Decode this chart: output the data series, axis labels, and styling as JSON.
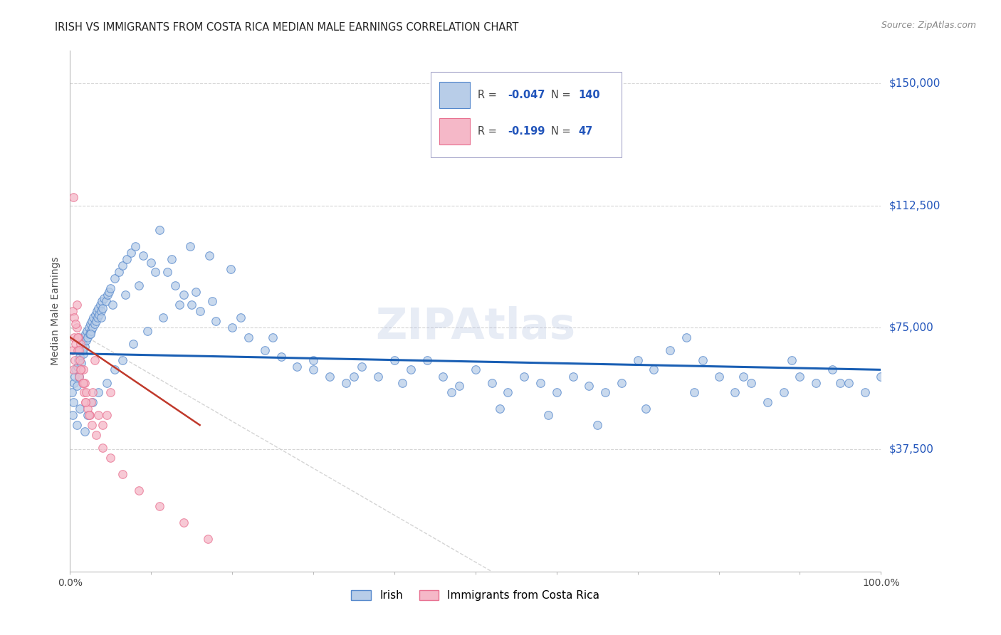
{
  "title": "IRISH VS IMMIGRANTS FROM COSTA RICA MEDIAN MALE EARNINGS CORRELATION CHART",
  "source": "Source: ZipAtlas.com",
  "ylabel": "Median Male Earnings",
  "ymin": 0,
  "ymax": 160000,
  "xmin": 0.0,
  "xmax": 1.0,
  "watermark": "ZIPAtlas",
  "legend_irish_r": "-0.047",
  "legend_irish_n": "140",
  "legend_cr_r": "-0.199",
  "legend_cr_n": "47",
  "blue_scatter_color": "#b8cde8",
  "blue_edge_color": "#5588cc",
  "pink_scatter_color": "#f5b8c8",
  "pink_edge_color": "#e87090",
  "trend_blue_color": "#1a5fb4",
  "trend_pink_color": "#c0392b",
  "diag_color": "#d0d0d0",
  "grid_color": "#d5d5d5",
  "right_label_color": "#2255bb",
  "ytick_positions": [
    37500,
    75000,
    112500,
    150000
  ],
  "ytick_labels": [
    "$37,500",
    "$75,000",
    "$112,500",
    "$150,000"
  ],
  "irish_x": [
    0.002,
    0.003,
    0.004,
    0.005,
    0.006,
    0.007,
    0.008,
    0.009,
    0.01,
    0.011,
    0.012,
    0.013,
    0.014,
    0.015,
    0.016,
    0.017,
    0.018,
    0.019,
    0.02,
    0.021,
    0.022,
    0.023,
    0.024,
    0.025,
    0.026,
    0.027,
    0.028,
    0.029,
    0.03,
    0.031,
    0.032,
    0.033,
    0.034,
    0.035,
    0.036,
    0.037,
    0.038,
    0.039,
    0.04,
    0.042,
    0.044,
    0.046,
    0.048,
    0.05,
    0.055,
    0.06,
    0.065,
    0.07,
    0.075,
    0.08,
    0.09,
    0.1,
    0.11,
    0.12,
    0.13,
    0.14,
    0.15,
    0.16,
    0.18,
    0.2,
    0.22,
    0.24,
    0.26,
    0.28,
    0.3,
    0.32,
    0.34,
    0.36,
    0.38,
    0.4,
    0.42,
    0.44,
    0.46,
    0.48,
    0.5,
    0.52,
    0.54,
    0.56,
    0.58,
    0.6,
    0.62,
    0.64,
    0.66,
    0.68,
    0.7,
    0.72,
    0.74,
    0.76,
    0.78,
    0.8,
    0.82,
    0.84,
    0.86,
    0.88,
    0.9,
    0.92,
    0.94,
    0.96,
    0.98,
    1.0,
    0.008,
    0.012,
    0.018,
    0.022,
    0.028,
    0.035,
    0.045,
    0.055,
    0.065,
    0.078,
    0.095,
    0.115,
    0.135,
    0.155,
    0.175,
    0.21,
    0.25,
    0.3,
    0.35,
    0.41,
    0.47,
    0.53,
    0.59,
    0.65,
    0.71,
    0.77,
    0.83,
    0.89,
    0.95,
    0.015,
    0.025,
    0.038,
    0.052,
    0.068,
    0.085,
    0.105,
    0.125,
    0.148,
    0.172,
    0.198
  ],
  "irish_y": [
    55000,
    48000,
    52000,
    58000,
    60000,
    62000,
    57000,
    63000,
    65000,
    60000,
    66000,
    68000,
    64000,
    70000,
    67000,
    72000,
    69000,
    73000,
    71000,
    74000,
    72000,
    75000,
    73000,
    76000,
    74000,
    77000,
    75000,
    78000,
    76000,
    79000,
    77000,
    80000,
    78000,
    81000,
    79000,
    82000,
    80000,
    83000,
    81000,
    84000,
    83000,
    85000,
    86000,
    87000,
    90000,
    92000,
    94000,
    96000,
    98000,
    100000,
    97000,
    95000,
    105000,
    92000,
    88000,
    85000,
    82000,
    80000,
    77000,
    75000,
    72000,
    68000,
    66000,
    63000,
    62000,
    60000,
    58000,
    63000,
    60000,
    65000,
    62000,
    65000,
    60000,
    57000,
    62000,
    58000,
    55000,
    60000,
    58000,
    55000,
    60000,
    57000,
    55000,
    58000,
    65000,
    62000,
    68000,
    72000,
    65000,
    60000,
    55000,
    58000,
    52000,
    55000,
    60000,
    58000,
    62000,
    58000,
    55000,
    60000,
    45000,
    50000,
    43000,
    48000,
    52000,
    55000,
    58000,
    62000,
    65000,
    70000,
    74000,
    78000,
    82000,
    86000,
    83000,
    78000,
    72000,
    65000,
    60000,
    58000,
    55000,
    50000,
    48000,
    45000,
    50000,
    55000,
    60000,
    65000,
    58000,
    68000,
    73000,
    78000,
    82000,
    85000,
    88000,
    92000,
    96000,
    100000,
    97000,
    93000
  ],
  "cr_x": [
    0.003,
    0.004,
    0.005,
    0.006,
    0.007,
    0.008,
    0.009,
    0.01,
    0.011,
    0.012,
    0.013,
    0.014,
    0.015,
    0.016,
    0.017,
    0.018,
    0.019,
    0.02,
    0.022,
    0.024,
    0.026,
    0.028,
    0.03,
    0.035,
    0.04,
    0.045,
    0.05,
    0.003,
    0.005,
    0.007,
    0.009,
    0.011,
    0.013,
    0.016,
    0.019,
    0.023,
    0.027,
    0.032,
    0.04,
    0.05,
    0.065,
    0.085,
    0.11,
    0.14,
    0.17,
    0.004,
    0.008
  ],
  "cr_y": [
    68000,
    62000,
    72000,
    65000,
    70000,
    75000,
    68000,
    72000,
    60000,
    65000,
    70000,
    62000,
    58000,
    62000,
    55000,
    58000,
    52000,
    55000,
    50000,
    48000,
    52000,
    55000,
    65000,
    48000,
    45000,
    48000,
    55000,
    80000,
    78000,
    76000,
    72000,
    68000,
    62000,
    58000,
    52000,
    48000,
    45000,
    42000,
    38000,
    35000,
    30000,
    25000,
    20000,
    15000,
    10000,
    115000,
    82000
  ]
}
